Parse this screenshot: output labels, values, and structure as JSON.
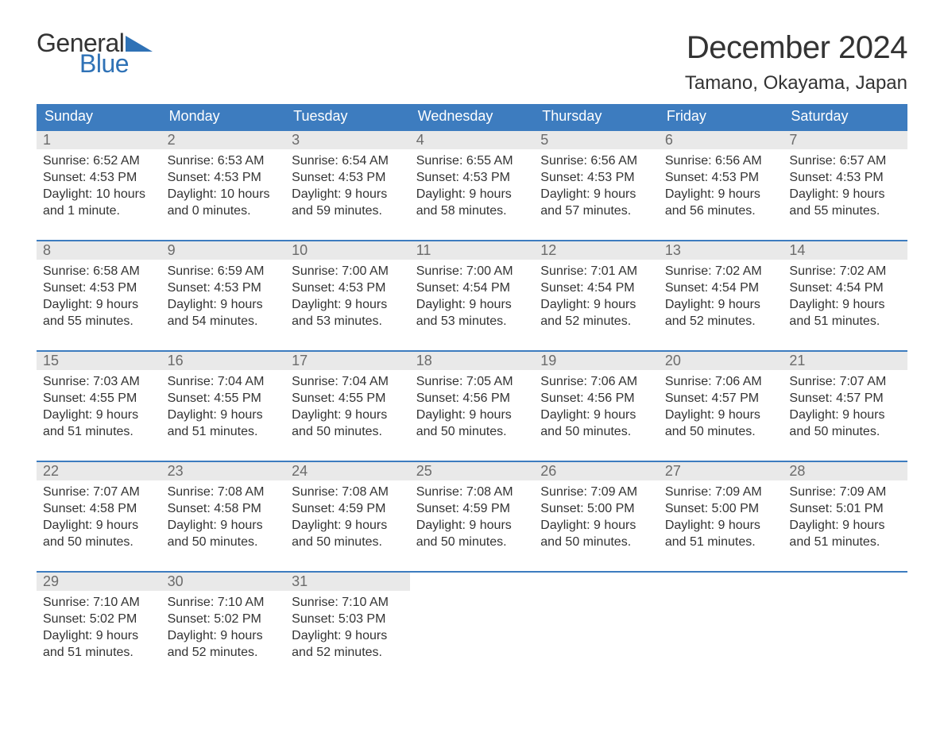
{
  "logo": {
    "text_general": "General",
    "text_blue": "Blue",
    "triangle_color": "#2f72b6"
  },
  "title": "December 2024",
  "location": "Tamano, Okayama, Japan",
  "colors": {
    "header_bg": "#3d7cbf",
    "header_text": "#ffffff",
    "daynum_bg": "#e9e9e9",
    "daynum_text": "#6b6b6b",
    "body_text": "#333333",
    "blue_accent": "#2f72b6",
    "background": "#ffffff"
  },
  "typography": {
    "title_fontsize": 40,
    "location_fontsize": 24,
    "header_fontsize": 18,
    "daynum_fontsize": 18,
    "body_fontsize": 16,
    "logo_fontsize": 32
  },
  "layout": {
    "columns": 7,
    "rows": 5,
    "cell_min_height": 120
  },
  "weekdays": [
    "Sunday",
    "Monday",
    "Tuesday",
    "Wednesday",
    "Thursday",
    "Friday",
    "Saturday"
  ],
  "days": [
    {
      "n": "1",
      "sunrise": "Sunrise: 6:52 AM",
      "sunset": "Sunset: 4:53 PM",
      "d1": "Daylight: 10 hours",
      "d2": "and 1 minute."
    },
    {
      "n": "2",
      "sunrise": "Sunrise: 6:53 AM",
      "sunset": "Sunset: 4:53 PM",
      "d1": "Daylight: 10 hours",
      "d2": "and 0 minutes."
    },
    {
      "n": "3",
      "sunrise": "Sunrise: 6:54 AM",
      "sunset": "Sunset: 4:53 PM",
      "d1": "Daylight: 9 hours",
      "d2": "and 59 minutes."
    },
    {
      "n": "4",
      "sunrise": "Sunrise: 6:55 AM",
      "sunset": "Sunset: 4:53 PM",
      "d1": "Daylight: 9 hours",
      "d2": "and 58 minutes."
    },
    {
      "n": "5",
      "sunrise": "Sunrise: 6:56 AM",
      "sunset": "Sunset: 4:53 PM",
      "d1": "Daylight: 9 hours",
      "d2": "and 57 minutes."
    },
    {
      "n": "6",
      "sunrise": "Sunrise: 6:56 AM",
      "sunset": "Sunset: 4:53 PM",
      "d1": "Daylight: 9 hours",
      "d2": "and 56 minutes."
    },
    {
      "n": "7",
      "sunrise": "Sunrise: 6:57 AM",
      "sunset": "Sunset: 4:53 PM",
      "d1": "Daylight: 9 hours",
      "d2": "and 55 minutes."
    },
    {
      "n": "8",
      "sunrise": "Sunrise: 6:58 AM",
      "sunset": "Sunset: 4:53 PM",
      "d1": "Daylight: 9 hours",
      "d2": "and 55 minutes."
    },
    {
      "n": "9",
      "sunrise": "Sunrise: 6:59 AM",
      "sunset": "Sunset: 4:53 PM",
      "d1": "Daylight: 9 hours",
      "d2": "and 54 minutes."
    },
    {
      "n": "10",
      "sunrise": "Sunrise: 7:00 AM",
      "sunset": "Sunset: 4:53 PM",
      "d1": "Daylight: 9 hours",
      "d2": "and 53 minutes."
    },
    {
      "n": "11",
      "sunrise": "Sunrise: 7:00 AM",
      "sunset": "Sunset: 4:54 PM",
      "d1": "Daylight: 9 hours",
      "d2": "and 53 minutes."
    },
    {
      "n": "12",
      "sunrise": "Sunrise: 7:01 AM",
      "sunset": "Sunset: 4:54 PM",
      "d1": "Daylight: 9 hours",
      "d2": "and 52 minutes."
    },
    {
      "n": "13",
      "sunrise": "Sunrise: 7:02 AM",
      "sunset": "Sunset: 4:54 PM",
      "d1": "Daylight: 9 hours",
      "d2": "and 52 minutes."
    },
    {
      "n": "14",
      "sunrise": "Sunrise: 7:02 AM",
      "sunset": "Sunset: 4:54 PM",
      "d1": "Daylight: 9 hours",
      "d2": "and 51 minutes."
    },
    {
      "n": "15",
      "sunrise": "Sunrise: 7:03 AM",
      "sunset": "Sunset: 4:55 PM",
      "d1": "Daylight: 9 hours",
      "d2": "and 51 minutes."
    },
    {
      "n": "16",
      "sunrise": "Sunrise: 7:04 AM",
      "sunset": "Sunset: 4:55 PM",
      "d1": "Daylight: 9 hours",
      "d2": "and 51 minutes."
    },
    {
      "n": "17",
      "sunrise": "Sunrise: 7:04 AM",
      "sunset": "Sunset: 4:55 PM",
      "d1": "Daylight: 9 hours",
      "d2": "and 50 minutes."
    },
    {
      "n": "18",
      "sunrise": "Sunrise: 7:05 AM",
      "sunset": "Sunset: 4:56 PM",
      "d1": "Daylight: 9 hours",
      "d2": "and 50 minutes."
    },
    {
      "n": "19",
      "sunrise": "Sunrise: 7:06 AM",
      "sunset": "Sunset: 4:56 PM",
      "d1": "Daylight: 9 hours",
      "d2": "and 50 minutes."
    },
    {
      "n": "20",
      "sunrise": "Sunrise: 7:06 AM",
      "sunset": "Sunset: 4:57 PM",
      "d1": "Daylight: 9 hours",
      "d2": "and 50 minutes."
    },
    {
      "n": "21",
      "sunrise": "Sunrise: 7:07 AM",
      "sunset": "Sunset: 4:57 PM",
      "d1": "Daylight: 9 hours",
      "d2": "and 50 minutes."
    },
    {
      "n": "22",
      "sunrise": "Sunrise: 7:07 AM",
      "sunset": "Sunset: 4:58 PM",
      "d1": "Daylight: 9 hours",
      "d2": "and 50 minutes."
    },
    {
      "n": "23",
      "sunrise": "Sunrise: 7:08 AM",
      "sunset": "Sunset: 4:58 PM",
      "d1": "Daylight: 9 hours",
      "d2": "and 50 minutes."
    },
    {
      "n": "24",
      "sunrise": "Sunrise: 7:08 AM",
      "sunset": "Sunset: 4:59 PM",
      "d1": "Daylight: 9 hours",
      "d2": "and 50 minutes."
    },
    {
      "n": "25",
      "sunrise": "Sunrise: 7:08 AM",
      "sunset": "Sunset: 4:59 PM",
      "d1": "Daylight: 9 hours",
      "d2": "and 50 minutes."
    },
    {
      "n": "26",
      "sunrise": "Sunrise: 7:09 AM",
      "sunset": "Sunset: 5:00 PM",
      "d1": "Daylight: 9 hours",
      "d2": "and 50 minutes."
    },
    {
      "n": "27",
      "sunrise": "Sunrise: 7:09 AM",
      "sunset": "Sunset: 5:00 PM",
      "d1": "Daylight: 9 hours",
      "d2": "and 51 minutes."
    },
    {
      "n": "28",
      "sunrise": "Sunrise: 7:09 AM",
      "sunset": "Sunset: 5:01 PM",
      "d1": "Daylight: 9 hours",
      "d2": "and 51 minutes."
    },
    {
      "n": "29",
      "sunrise": "Sunrise: 7:10 AM",
      "sunset": "Sunset: 5:02 PM",
      "d1": "Daylight: 9 hours",
      "d2": "and 51 minutes."
    },
    {
      "n": "30",
      "sunrise": "Sunrise: 7:10 AM",
      "sunset": "Sunset: 5:02 PM",
      "d1": "Daylight: 9 hours",
      "d2": "and 52 minutes."
    },
    {
      "n": "31",
      "sunrise": "Sunrise: 7:10 AM",
      "sunset": "Sunset: 5:03 PM",
      "d1": "Daylight: 9 hours",
      "d2": "and 52 minutes."
    }
  ]
}
